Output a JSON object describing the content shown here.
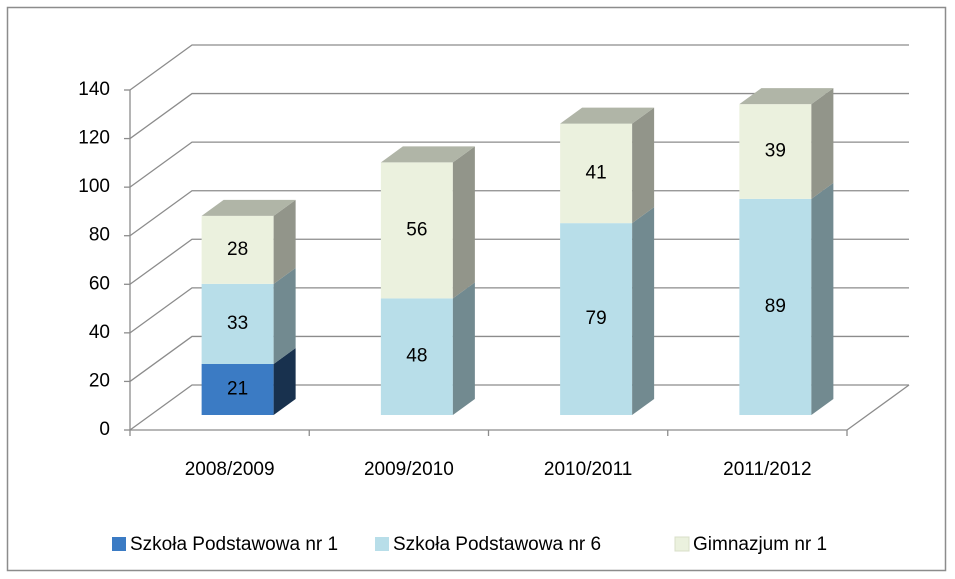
{
  "chart_data": {
    "type": "bar",
    "stacked": true,
    "three_d": true,
    "categories": [
      "2008/2009",
      "2009/2010",
      "2010/2011",
      "2011/2012"
    ],
    "series": [
      {
        "name": "Szkoła Podstawowa nr 1",
        "color": "#3b7bc4",
        "values": [
          21,
          null,
          null,
          null
        ]
      },
      {
        "name": "Szkoła Podstawowa nr 6",
        "color": "#b8dee9",
        "values": [
          33,
          48,
          79,
          89
        ]
      },
      {
        "name": "Gimnazjum nr 1",
        "color": "#ebf1de",
        "values": [
          28,
          56,
          41,
          39
        ]
      }
    ],
    "ylim": [
      0,
      140
    ],
    "yticks": [
      0,
      20,
      40,
      60,
      80,
      100,
      120,
      140
    ],
    "grid": true,
    "legend": "bottom"
  }
}
